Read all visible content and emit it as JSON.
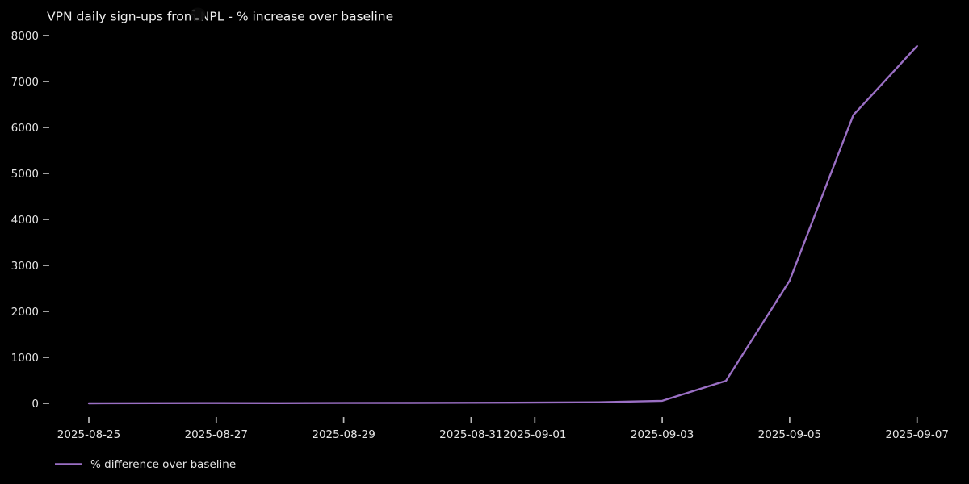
{
  "title": "VPN daily sign-ups from NPL - % increase over baseline",
  "legend": {
    "label": "% difference over baseline"
  },
  "colors": {
    "background": "#000000",
    "title_text": "#f0f0f0",
    "tick_text": "#e3e3e3",
    "tick_mark": "#b9b9b9",
    "line": "#9a6fc4"
  },
  "chart_data": {
    "type": "line",
    "title": "VPN daily sign-ups from NPL - % increase over baseline",
    "x": [
      "2025-08-25",
      "2025-08-26",
      "2025-08-27",
      "2025-08-28",
      "2025-08-29",
      "2025-08-30",
      "2025-08-31",
      "2025-09-01",
      "2025-09-02",
      "2025-09-03",
      "2025-09-04",
      "2025-09-05",
      "2025-09-06",
      "2025-09-07"
    ],
    "series": [
      {
        "name": "% difference over baseline",
        "values": [
          0,
          3,
          6,
          4,
          7,
          9,
          12,
          15,
          22,
          55,
          490,
          2670,
          6270,
          7770
        ]
      }
    ],
    "xlabel": "",
    "ylabel": "",
    "ylim": [
      0,
      8000
    ],
    "yticks": [
      0,
      1000,
      2000,
      3000,
      4000,
      5000,
      6000,
      7000,
      8000
    ],
    "xticks": [
      "2025-08-25",
      "2025-08-27",
      "2025-08-29",
      "2025-08-31",
      "2025-09-01",
      "2025-09-03",
      "2025-09-05",
      "2025-09-07"
    ],
    "grid": false,
    "legend_position": "lower-left-outside",
    "theme": "dark_background"
  }
}
